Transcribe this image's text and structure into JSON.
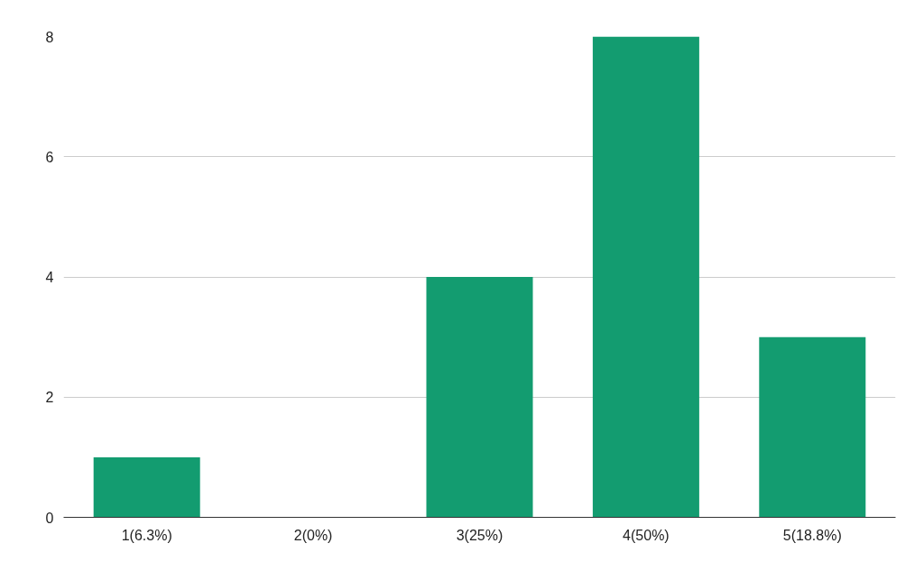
{
  "chart_data": {
    "type": "bar",
    "categories": [
      "1(6.3%)",
      "2(0%)",
      "3(25%)",
      "4(50%)",
      "5(18.8%)"
    ],
    "values": [
      1,
      0,
      4,
      8,
      3
    ],
    "color": "#139c70",
    "ylim": [
      0,
      8
    ],
    "yticks": [
      0,
      2,
      4,
      6,
      8
    ],
    "grid": "y"
  }
}
